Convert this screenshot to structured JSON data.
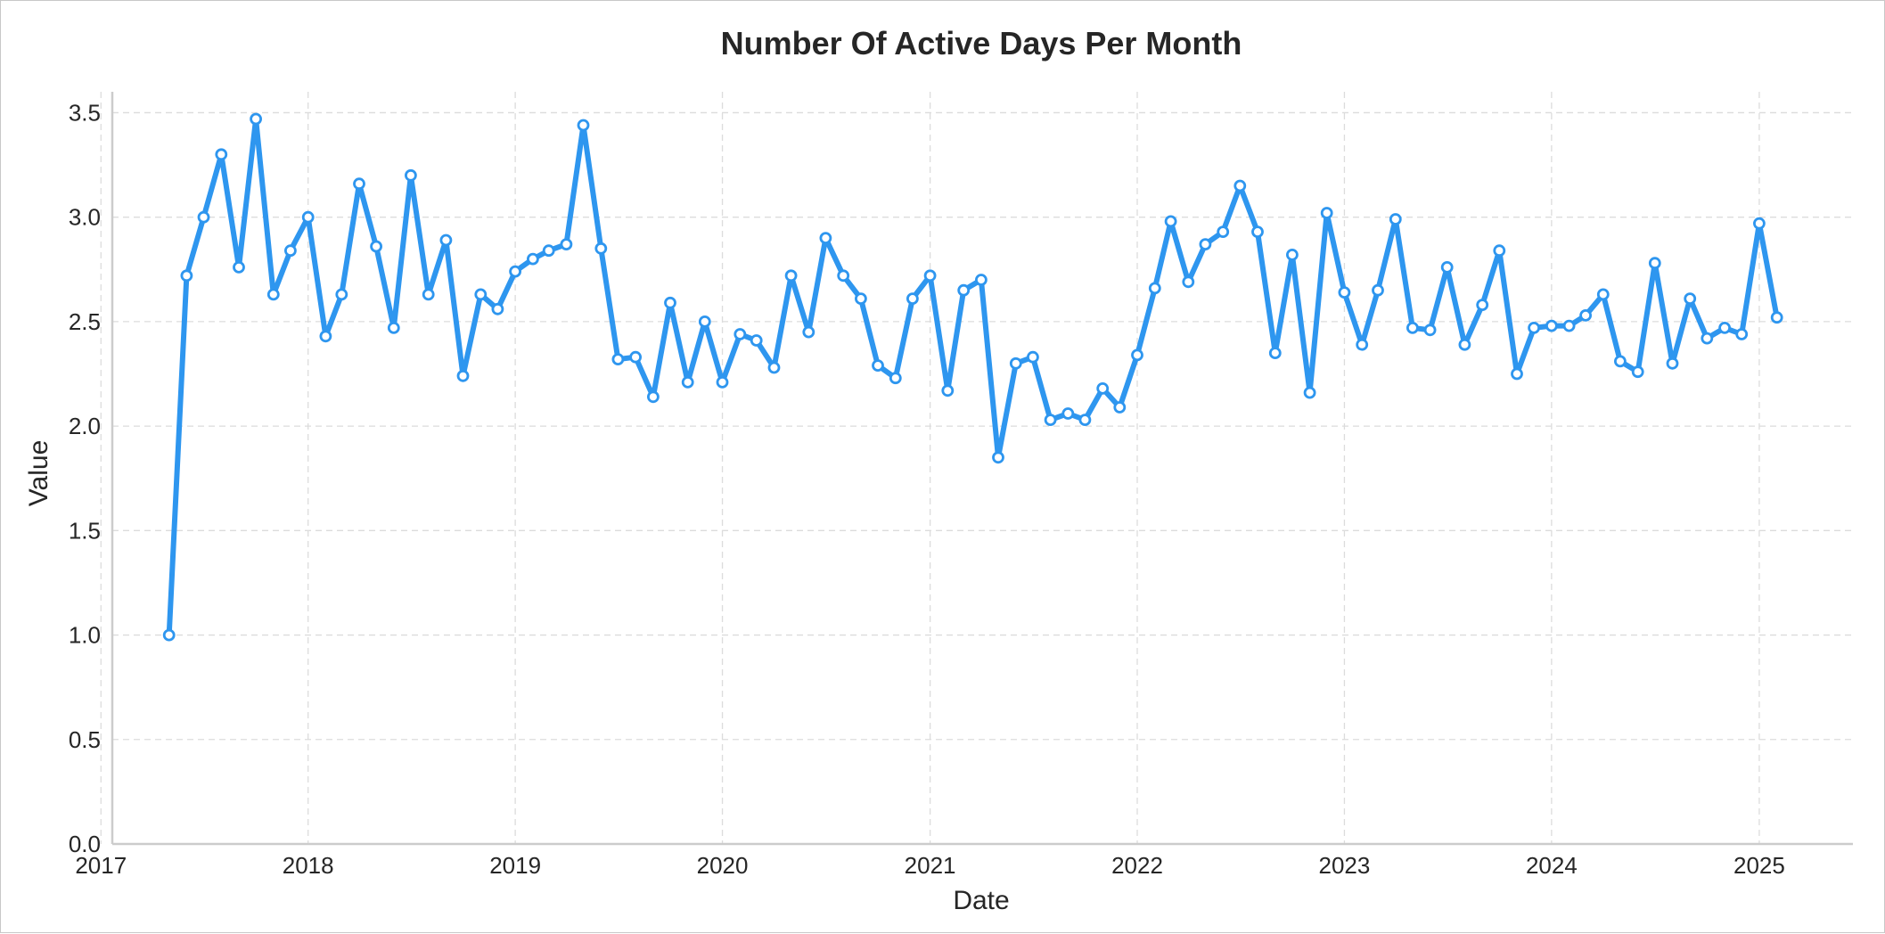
{
  "chart_data": {
    "type": "line",
    "title": "Number Of Active Days Per Month",
    "xlabel": "Date",
    "ylabel": "Value",
    "ylim": [
      0,
      3.6
    ],
    "xlim": [
      "2017-01-21",
      "2025-06-15"
    ],
    "yticks": [
      0.0,
      0.5,
      1.0,
      1.5,
      2.0,
      2.5,
      3.0,
      3.5
    ],
    "ytick_labels": [
      "0.0",
      "0.5",
      "1.0",
      "1.5",
      "2.0",
      "2.5",
      "3.0",
      "3.5"
    ],
    "xticks": [
      "2017-01-01",
      "2018-01-01",
      "2019-01-01",
      "2020-01-01",
      "2021-01-01",
      "2022-01-01",
      "2023-01-01",
      "2024-01-01",
      "2025-01-01"
    ],
    "xtick_labels": [
      "2017",
      "2018",
      "2019",
      "2020",
      "2021",
      "2022",
      "2023",
      "2024",
      "2025"
    ],
    "grid": true,
    "series": [
      {
        "color": "#2e96ef",
        "x": [
          "2017-05",
          "2017-06",
          "2017-07",
          "2017-08",
          "2017-09",
          "2017-10",
          "2017-11",
          "2017-12",
          "2018-01",
          "2018-02",
          "2018-03",
          "2018-04",
          "2018-05",
          "2018-06",
          "2018-07",
          "2018-08",
          "2018-09",
          "2018-10",
          "2018-11",
          "2018-12",
          "2019-01",
          "2019-02",
          "2019-03",
          "2019-04",
          "2019-05",
          "2019-06",
          "2019-07",
          "2019-08",
          "2019-09",
          "2019-10",
          "2019-11",
          "2019-12",
          "2020-01",
          "2020-02",
          "2020-03",
          "2020-04",
          "2020-05",
          "2020-06",
          "2020-07",
          "2020-08",
          "2020-09",
          "2020-10",
          "2020-11",
          "2020-12",
          "2021-01",
          "2021-02",
          "2021-03",
          "2021-04",
          "2021-05",
          "2021-06",
          "2021-07",
          "2021-08",
          "2021-09",
          "2021-10",
          "2021-11",
          "2021-12",
          "2022-01",
          "2022-02",
          "2022-03",
          "2022-04",
          "2022-05",
          "2022-06",
          "2022-07",
          "2022-08",
          "2022-09",
          "2022-10",
          "2022-11",
          "2022-12",
          "2023-01",
          "2023-02",
          "2023-03",
          "2023-04",
          "2023-05",
          "2023-06",
          "2023-07",
          "2023-08",
          "2023-09",
          "2023-10",
          "2023-11",
          "2023-12",
          "2024-01",
          "2024-02",
          "2024-03",
          "2024-04",
          "2024-05",
          "2024-06",
          "2024-07",
          "2024-08",
          "2024-09",
          "2024-10",
          "2024-11",
          "2024-12",
          "2025-01",
          "2025-02"
        ],
        "values": [
          1.0,
          2.72,
          3.0,
          3.3,
          2.76,
          3.47,
          2.63,
          2.84,
          3.0,
          2.43,
          2.63,
          3.16,
          2.86,
          2.47,
          3.2,
          2.63,
          2.89,
          2.24,
          2.63,
          2.56,
          2.74,
          2.8,
          2.84,
          2.87,
          3.44,
          2.85,
          2.32,
          2.33,
          2.14,
          2.59,
          2.21,
          2.5,
          2.21,
          2.44,
          2.41,
          2.28,
          2.72,
          2.45,
          2.9,
          2.72,
          2.61,
          2.29,
          2.23,
          2.61,
          2.72,
          2.17,
          2.65,
          2.7,
          1.85,
          2.3,
          2.33,
          2.03,
          2.06,
          2.03,
          2.18,
          2.09,
          2.34,
          2.66,
          2.98,
          2.69,
          2.87,
          2.93,
          3.15,
          2.93,
          2.35,
          2.82,
          2.16,
          3.02,
          2.64,
          2.39,
          2.65,
          2.99,
          2.47,
          2.46,
          2.76,
          2.39,
          2.58,
          2.84,
          2.25,
          2.47,
          2.48,
          2.48,
          2.53,
          2.63,
          2.31,
          2.26,
          2.78,
          2.3,
          2.61,
          2.42,
          2.47,
          2.44,
          2.97,
          2.52
        ]
      }
    ]
  }
}
